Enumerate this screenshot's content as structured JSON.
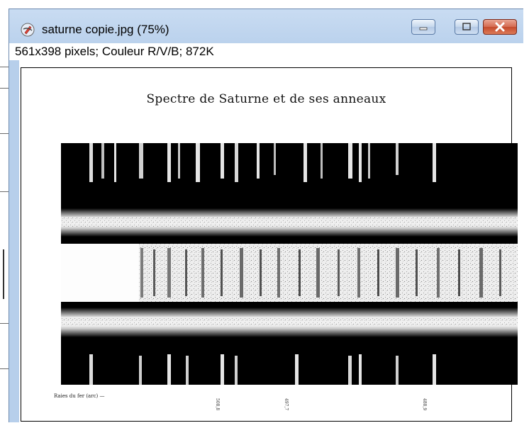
{
  "window": {
    "title": "saturne copie.jpg (75%)",
    "info": "561x398 pixels; Couleur R/V/B; 872K",
    "controls": {
      "minimize": "minimize",
      "maximize": "maximize",
      "close": "close"
    },
    "colors": {
      "titlebar": "#b7cfeb",
      "close": "#c44a2c"
    }
  },
  "image": {
    "title": "Spectre de Saturne et de ses anneaux",
    "caption": "Raies du fer (arc) —",
    "wavelengths": [
      "508,8",
      "497,7",
      "488,9"
    ]
  }
}
